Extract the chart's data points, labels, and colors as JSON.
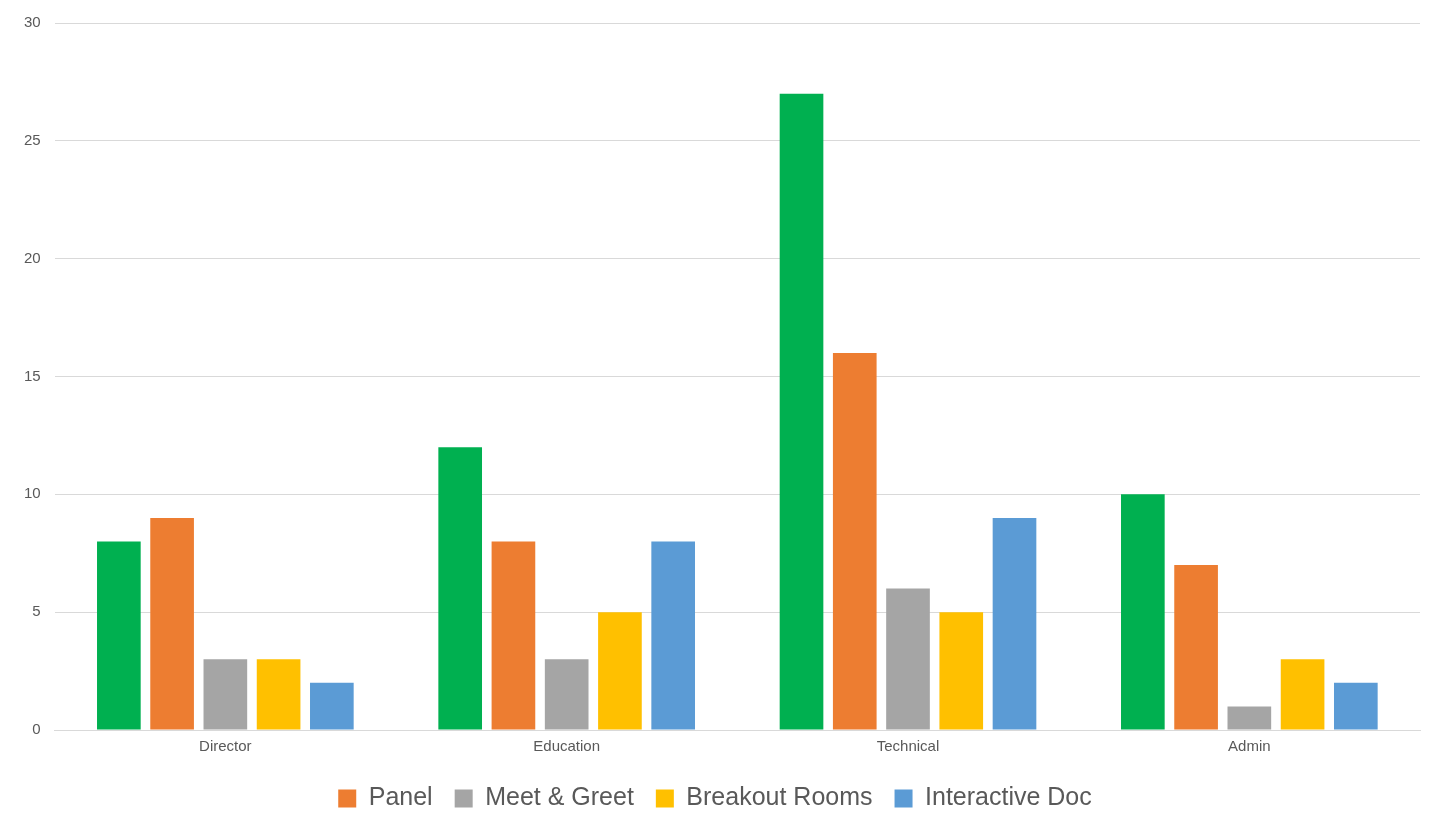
{
  "chart_data": {
    "type": "bar",
    "categories": [
      "Director",
      "Education",
      "Technical",
      "Admin"
    ],
    "series": [
      {
        "color": "#00b050",
        "values": [
          8,
          12,
          27,
          10
        ]
      },
      {
        "name": "Panel",
        "color": "#ed7d31",
        "values": [
          9,
          8,
          16,
          7
        ]
      },
      {
        "name": "Meet & Greet",
        "color": "#a5a5a5",
        "values": [
          3,
          3,
          6,
          1
        ]
      },
      {
        "name": "Breakout Rooms",
        "color": "#ffc000",
        "values": [
          3,
          5,
          5,
          3
        ]
      },
      {
        "name": "Interactive Doc",
        "color": "#5b9bd5",
        "values": [
          2,
          8,
          9,
          2
        ]
      }
    ],
    "ylim": [
      0,
      30
    ],
    "yticks": [
      0,
      5,
      10,
      15,
      20,
      25,
      30
    ],
    "grid": "y",
    "legend": "bottom"
  }
}
